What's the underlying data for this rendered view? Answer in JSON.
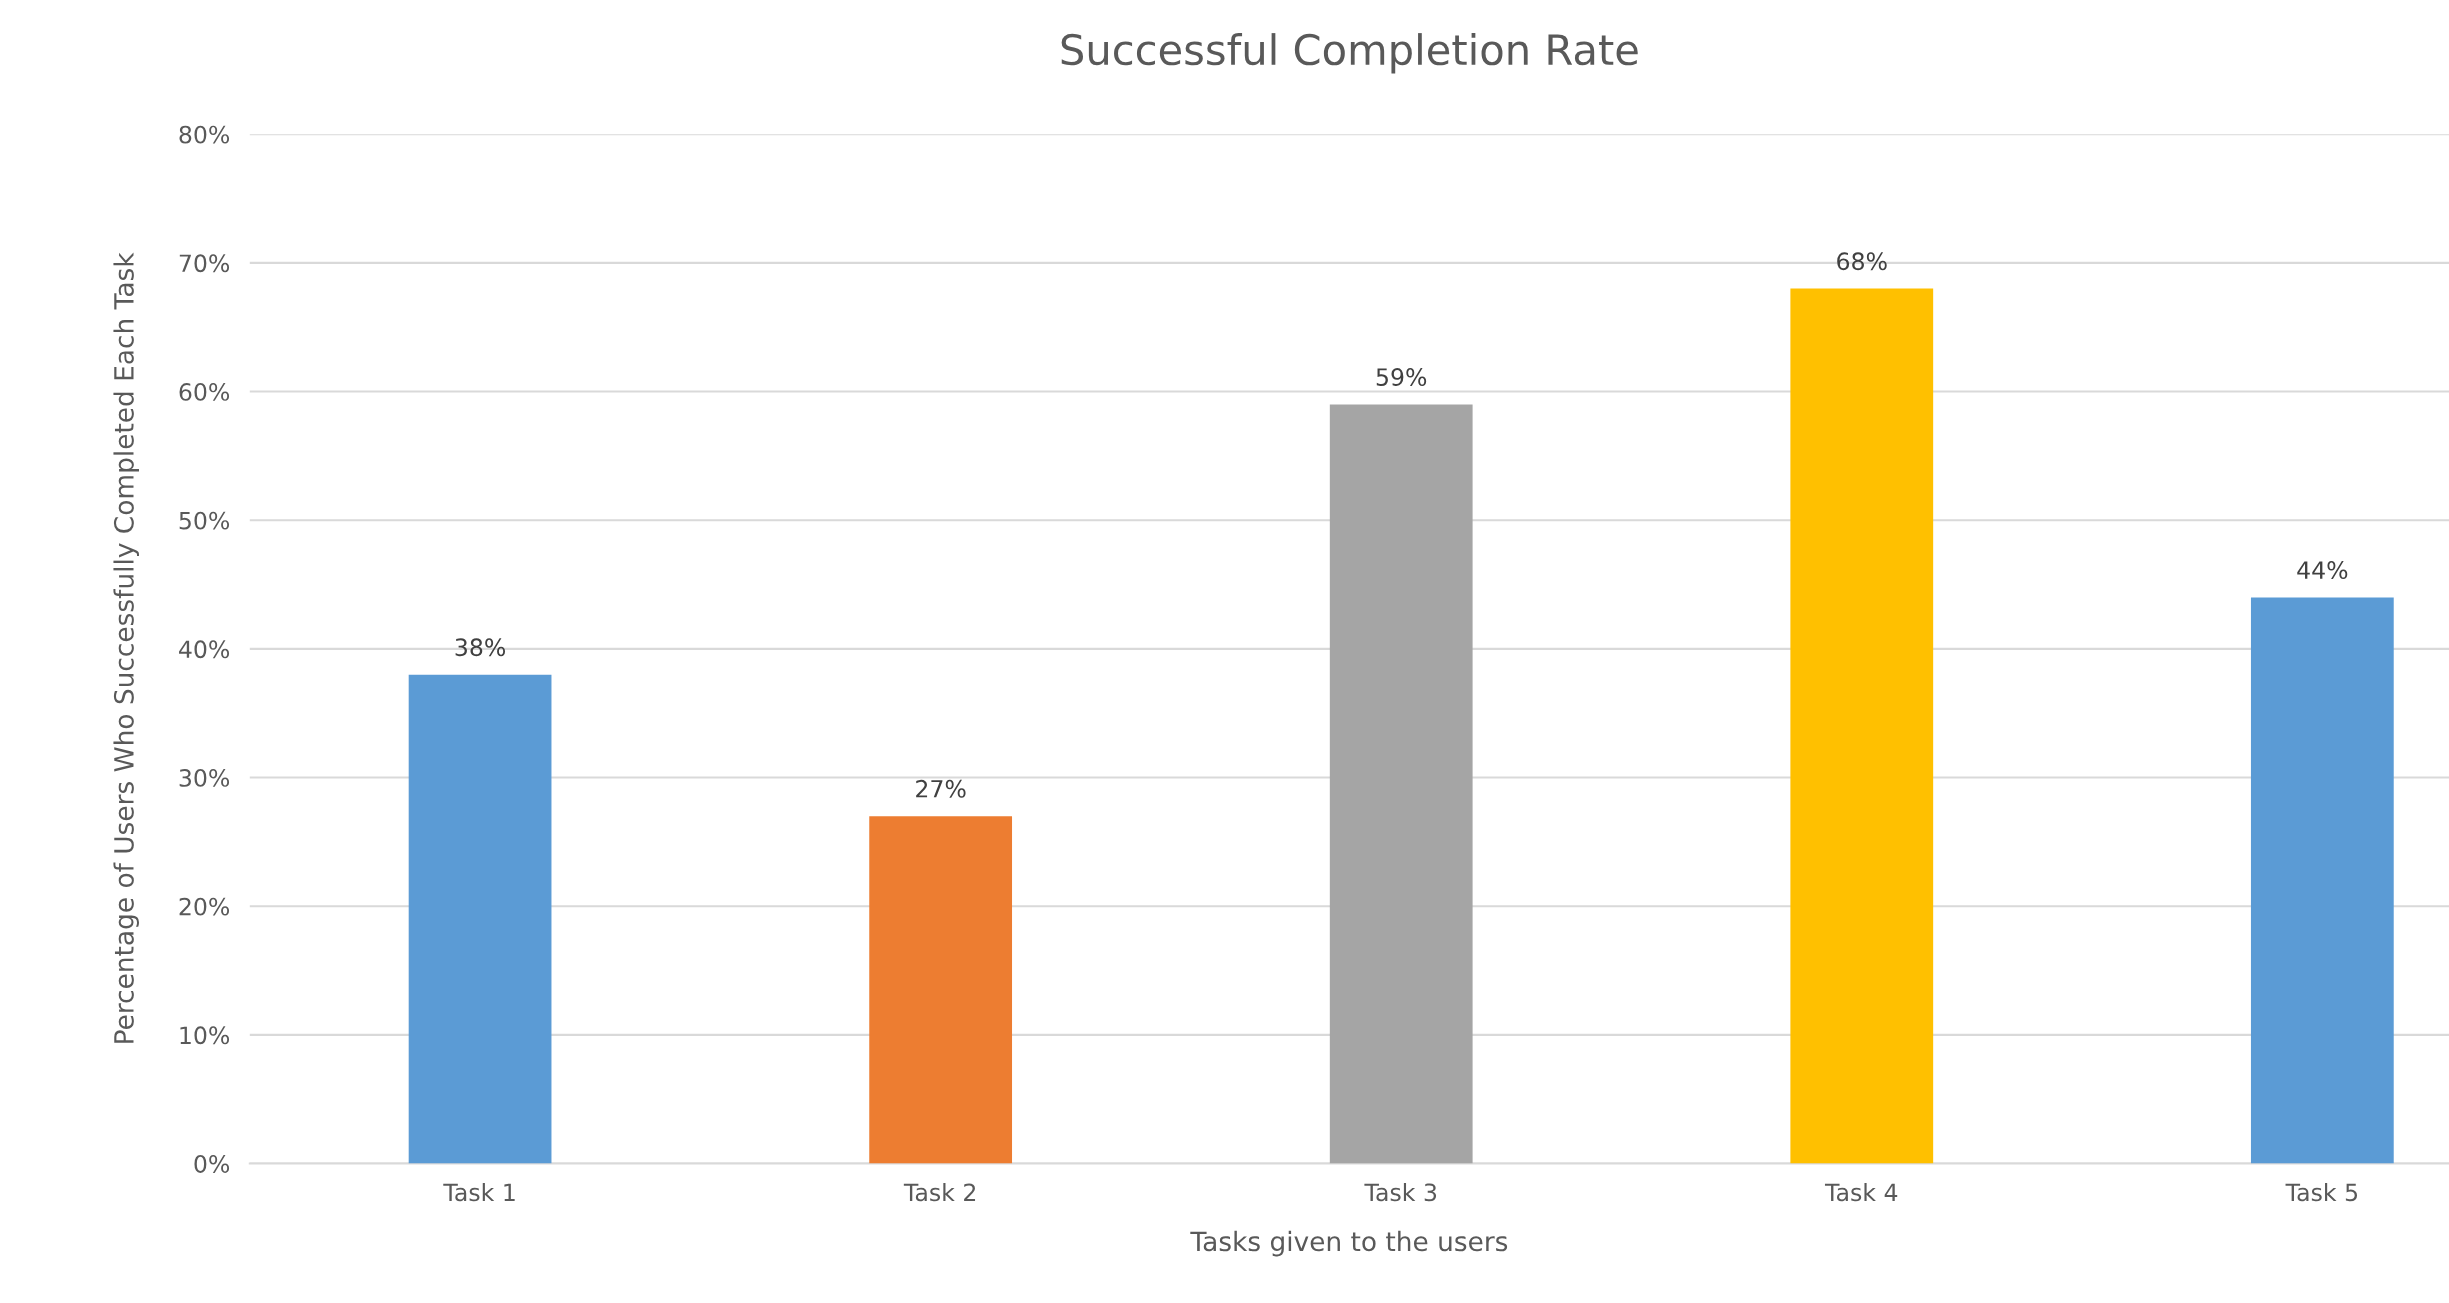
{
  "chart_data": {
    "type": "bar",
    "title": "Successful Completion Rate",
    "xlabel": "Tasks given to the users",
    "ylabel": "Percentage of Users Who Successfully Completed Each Task",
    "categories": [
      "Task 1",
      "Task 2",
      "Task 3",
      "Task 4",
      "Task 5"
    ],
    "values": [
      38,
      27,
      59,
      68,
      44
    ],
    "colors": [
      "#5b9bd5",
      "#ed7d31",
      "#a5a5a5",
      "#ffc000",
      "#5b9bd5"
    ],
    "value_labels": [
      "38%",
      "27%",
      "59%",
      "68%",
      "44%"
    ],
    "ylim": [
      0,
      80
    ],
    "yticks": [
      {
        "value": 0,
        "label": "0%"
      },
      {
        "value": 10,
        "label": "10%"
      },
      {
        "value": 20,
        "label": "20%"
      },
      {
        "value": 30,
        "label": "30%"
      },
      {
        "value": 40,
        "label": "40%"
      },
      {
        "value": 50,
        "label": "50%"
      },
      {
        "value": 60,
        "label": "60%"
      },
      {
        "value": 70,
        "label": "70%"
      },
      {
        "value": 80,
        "label": "80%"
      }
    ],
    "grid": "y",
    "legend": false
  }
}
